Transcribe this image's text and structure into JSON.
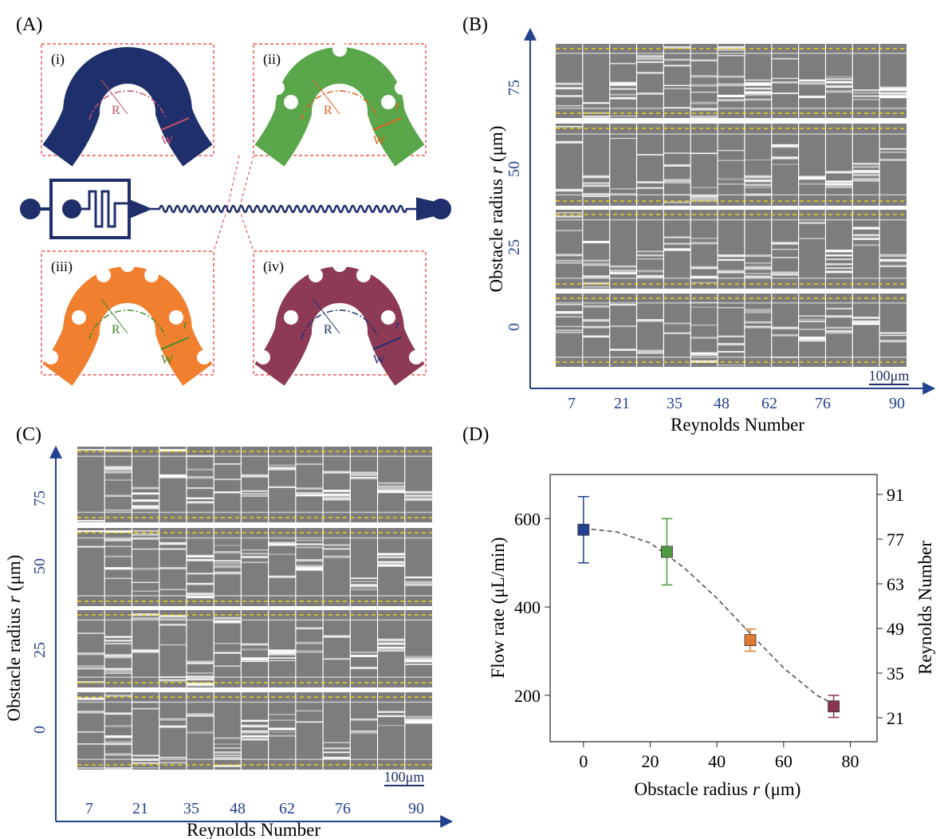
{
  "panel_labels": [
    "(A)",
    "(B)",
    "(C)",
    "(D)"
  ],
  "schematic": {
    "insets": [
      {
        "label": "(i)",
        "R": "R",
        "W": "W"
      },
      {
        "label": "(ii)",
        "R": "R",
        "r": "r",
        "W": "W"
      },
      {
        "label": "(iii)",
        "R": "R",
        "r": "r",
        "W": "W"
      },
      {
        "label": "(iv)",
        "R": "R",
        "r": "r",
        "W": "W"
      }
    ]
  },
  "kymographs": [
    {
      "y_label": {
        "text": "Obstacle radius",
        "var": "r",
        "unit": "(μm)"
      },
      "x_label": "Reynolds Number",
      "rows": [
        75,
        50,
        25,
        0
      ],
      "columns": [
        7,
        21,
        35,
        48,
        62,
        76,
        90
      ],
      "scale_bar": "100μm"
    },
    {
      "y_label": {
        "text": "Obstacle radius",
        "var": "r",
        "unit": "(μm)"
      },
      "x_label": "Reynolds Number",
      "rows": [
        75,
        50,
        25,
        0
      ],
      "columns": [
        7,
        21,
        35,
        48,
        62,
        76,
        90
      ],
      "scale_bar": "100μm"
    }
  ],
  "chart_data": {
    "type": "scatter",
    "x_label": {
      "text": "Obstacle radius",
      "var": "r",
      "unit": "(μm)"
    },
    "y_label": "Flow rate (μL/min)",
    "y2_label": "Reynolds Number",
    "x": [
      0,
      25,
      50,
      75
    ],
    "values": [
      575,
      525,
      325,
      175
    ],
    "errors": [
      75,
      75,
      25,
      25
    ],
    "colors": [
      "#24418f",
      "#4f9a3f",
      "#e07a30",
      "#8a3552"
    ],
    "fit": {
      "x": [
        0,
        10,
        20,
        30,
        40,
        50,
        60,
        70,
        75
      ],
      "values": [
        578,
        570,
        545,
        490,
        420,
        340,
        262,
        200,
        180
      ]
    },
    "xlim": [
      -10,
      88
    ],
    "xticks": [
      0,
      20,
      40,
      60,
      80
    ],
    "ylim": [
      95,
      700
    ],
    "yticks": [
      200,
      400,
      600
    ],
    "y2lim": [
      13.5,
      97.25
    ],
    "y2ticks": [
      21,
      35,
      49,
      63,
      77,
      91
    ]
  }
}
